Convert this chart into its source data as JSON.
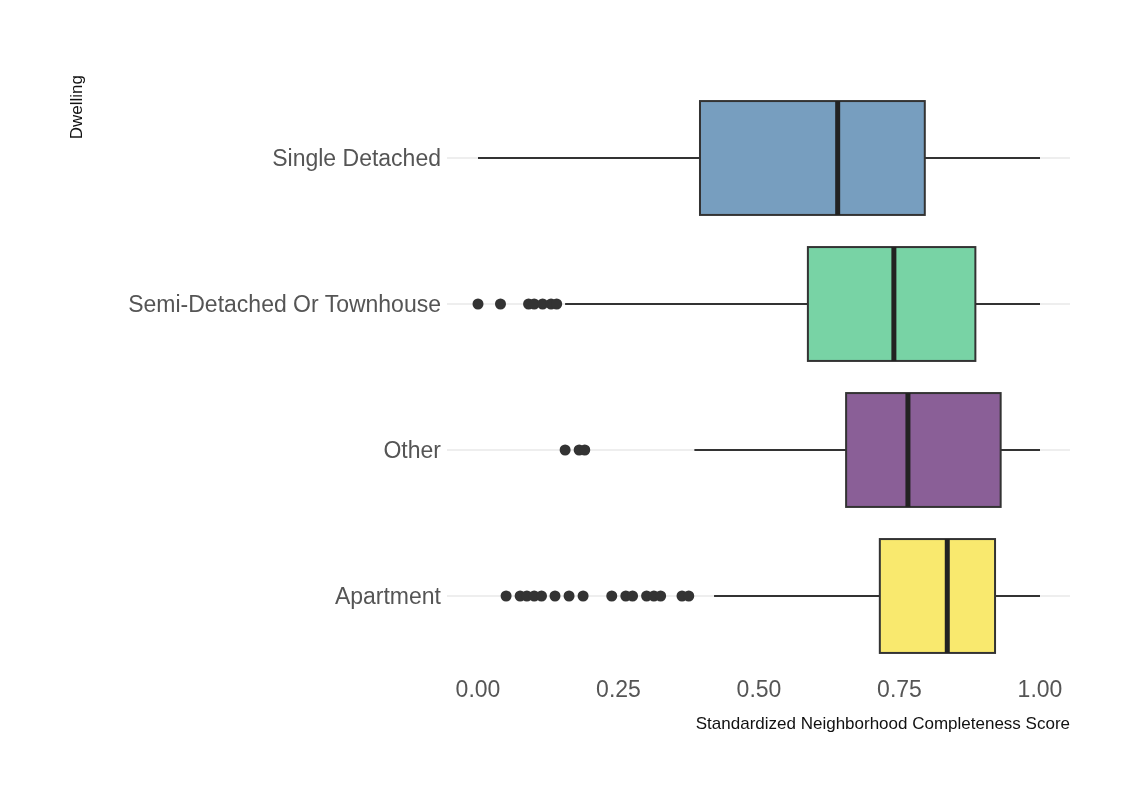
{
  "chart_data": {
    "type": "box",
    "orientation": "horizontal",
    "ylabel": "Dwelling",
    "xlabel": "Standardized Neighborhood Completeness Score",
    "categories": [
      "Single Detached",
      "Semi-Detached Or Townhouse",
      "Other",
      "Apartment"
    ],
    "colors": [
      "#779ebf",
      "#78d3a5",
      "#8a5f97",
      "#f9e96e"
    ],
    "boxes": [
      {
        "low": 0.0,
        "q1": 0.395,
        "median": 0.64,
        "q3": 0.795,
        "high": 1.0
      },
      {
        "low": 0.155,
        "q1": 0.587,
        "median": 0.74,
        "q3": 0.885,
        "high": 1.0,
        "outliers": [
          0.0,
          0.04,
          0.09,
          0.1,
          0.115,
          0.13,
          0.14
        ]
      },
      {
        "low": 0.385,
        "q1": 0.655,
        "median": 0.765,
        "q3": 0.93,
        "high": 1.0,
        "outliers": [
          0.155,
          0.18,
          0.19
        ]
      },
      {
        "low": 0.42,
        "q1": 0.715,
        "median": 0.835,
        "q3": 0.92,
        "high": 1.0,
        "outliers": [
          0.05,
          0.075,
          0.087,
          0.1,
          0.113,
          0.137,
          0.162,
          0.187,
          0.238,
          0.263,
          0.275,
          0.3,
          0.313,
          0.325,
          0.363,
          0.375
        ]
      }
    ],
    "xlim": [
      0,
      1
    ],
    "xticks": [
      {
        "value": 0,
        "label": "0.00"
      },
      {
        "value": 0.25,
        "label": "0.25"
      },
      {
        "value": 0.5,
        "label": "0.50"
      },
      {
        "value": 0.75,
        "label": "0.75"
      },
      {
        "value": 1,
        "label": "1.00"
      }
    ],
    "grid": "y"
  }
}
